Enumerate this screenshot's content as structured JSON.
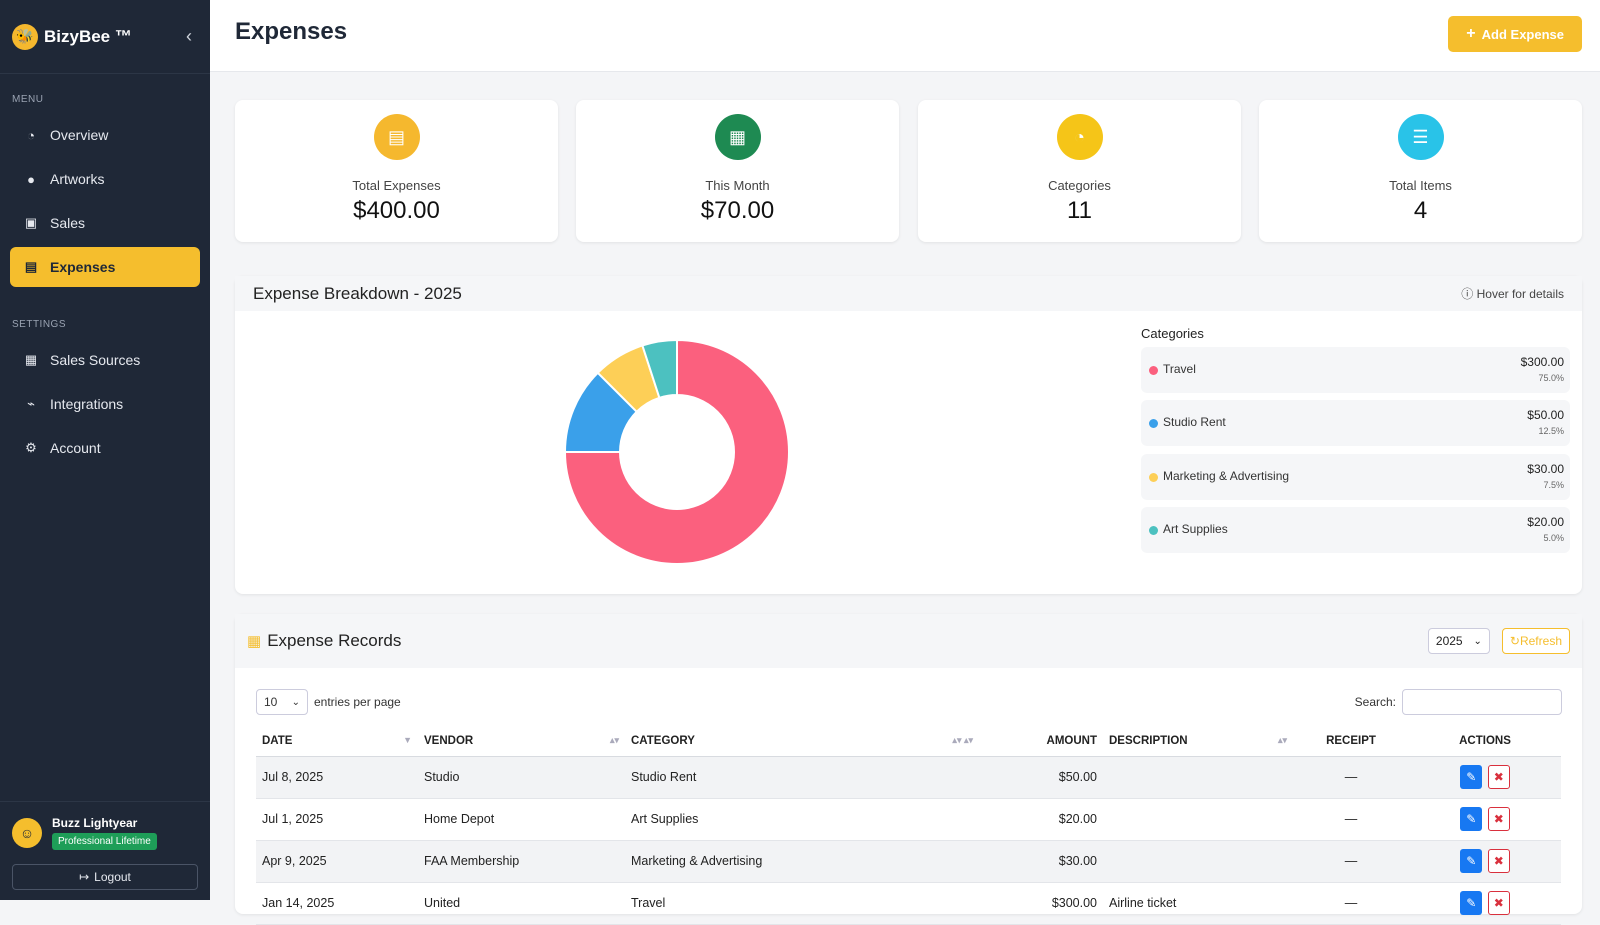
{
  "brand": {
    "name": "BizyBee ™",
    "logo_icon": "bee-logo",
    "collapse_icon": "chevron-left"
  },
  "sidebar": {
    "menu_label": "MENU",
    "menu_items": [
      {
        "label": "Overview",
        "icon": "pie-chart-icon"
      },
      {
        "label": "Artworks",
        "icon": "palette-icon"
      },
      {
        "label": "Sales",
        "icon": "cart-icon"
      },
      {
        "label": "Expenses",
        "icon": "receipt-icon",
        "active": true
      }
    ],
    "settings_label": "SETTINGS",
    "settings_items": [
      {
        "label": "Sales Sources",
        "icon": "store-icon"
      },
      {
        "label": "Integrations",
        "icon": "plug-icon"
      },
      {
        "label": "Account",
        "icon": "gear-icon"
      }
    ],
    "user": {
      "name": "Buzz Lightyear",
      "plan": "Professional Lifetime",
      "logout_label": "Logout"
    }
  },
  "header": {
    "title": "Expenses",
    "add_button_label": "Add Expense"
  },
  "stats": [
    {
      "label": "Total Expenses",
      "value": "$400.00",
      "color": "#f5b82e",
      "icon": "receipt-icon"
    },
    {
      "label": "This Month",
      "value": "$70.00",
      "color": "#1e8a52",
      "icon": "calendar-icon"
    },
    {
      "label": "Categories",
      "value": "11",
      "color": "#f5c518",
      "icon": "pie-chart-icon"
    },
    {
      "label": "Total Items",
      "value": "4",
      "color": "#29c3e8",
      "icon": "list-icon"
    }
  ],
  "breakdown": {
    "title": "Expense Breakdown - 2025",
    "hint": "Hover for details",
    "categories_title": "Categories",
    "categories": [
      {
        "name": "Travel",
        "amount": "$300.00",
        "percent": "75.0%",
        "value": 300,
        "color": "#fb607e"
      },
      {
        "name": "Studio Rent",
        "amount": "$50.00",
        "percent": "12.5%",
        "value": 50,
        "color": "#3aa0ea"
      },
      {
        "name": "Marketing & Advertising",
        "amount": "$30.00",
        "percent": "7.5%",
        "value": 30,
        "color": "#fdcf57"
      },
      {
        "name": "Art Supplies",
        "amount": "$20.00",
        "percent": "5.0%",
        "value": 20,
        "color": "#4cc1c0"
      }
    ]
  },
  "records": {
    "title": "Expense Records",
    "year": "2025",
    "refresh_label": "Refresh",
    "entries_value": "10",
    "entries_label": "entries per page",
    "search_label": "Search:",
    "search_placeholder": "",
    "columns": [
      "DATE",
      "VENDOR",
      "CATEGORY",
      "AMOUNT",
      "DESCRIPTION",
      "RECEIPT",
      "ACTIONS"
    ],
    "rows": [
      {
        "date": "Jul 8, 2025",
        "vendor": "Studio",
        "category": "Studio Rent",
        "amount": "$50.00",
        "description": "",
        "receipt": "—"
      },
      {
        "date": "Jul 1, 2025",
        "vendor": "Home Depot",
        "category": "Art Supplies",
        "amount": "$20.00",
        "description": "",
        "receipt": "—"
      },
      {
        "date": "Apr 9, 2025",
        "vendor": "FAA Membership",
        "category": "Marketing & Advertising",
        "amount": "$30.00",
        "description": "",
        "receipt": "—"
      },
      {
        "date": "Jan 14, 2025",
        "vendor": "United",
        "category": "Travel",
        "amount": "$300.00",
        "description": "Airline ticket",
        "receipt": "—"
      }
    ]
  }
}
